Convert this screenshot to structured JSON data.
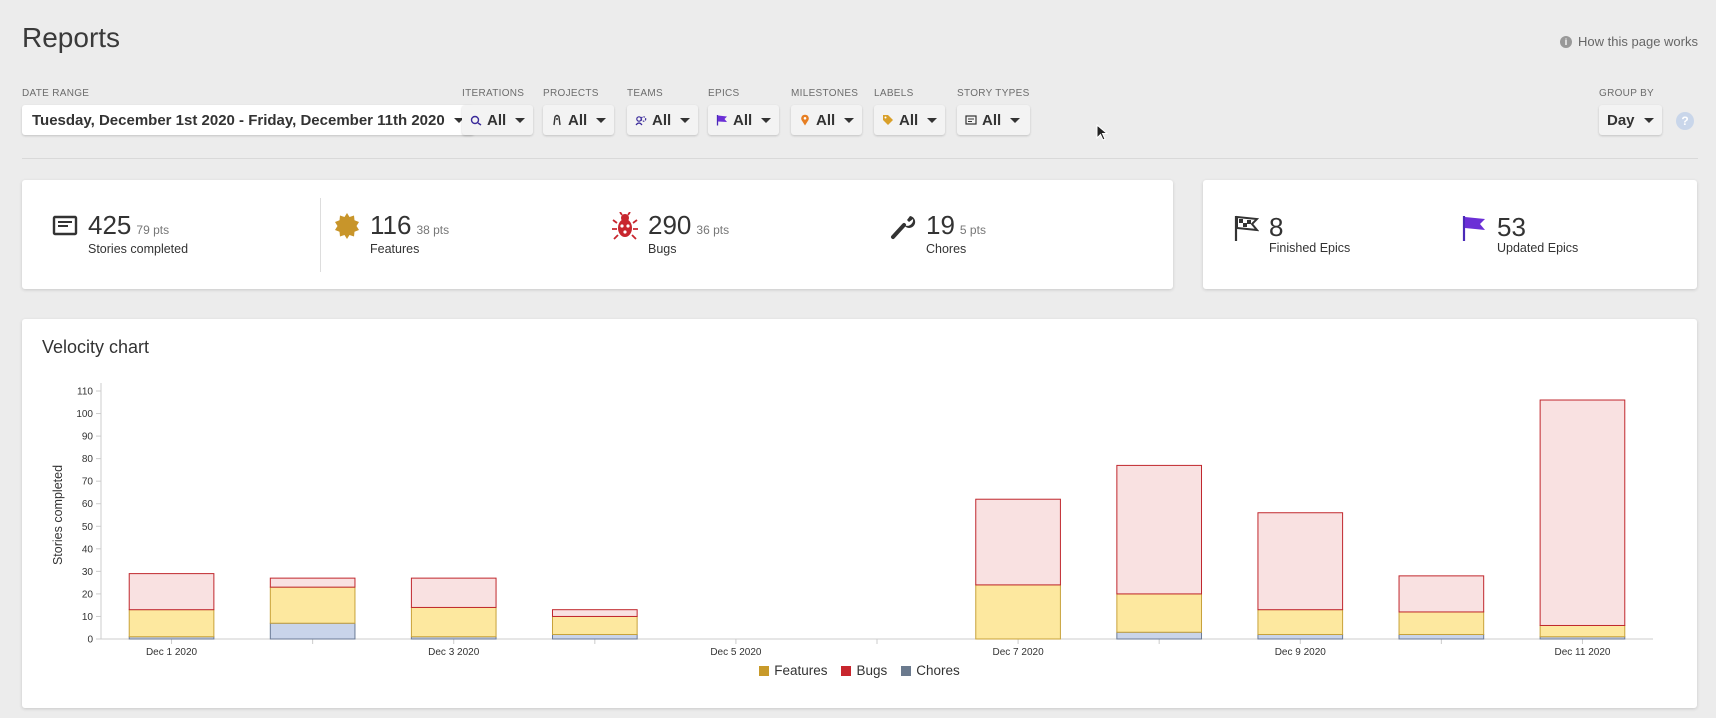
{
  "header": {
    "title": "Reports",
    "help_link": "How this page works"
  },
  "filters": {
    "date_range": {
      "label": "DATE RANGE",
      "value": "Tuesday, December 1st 2020 - Friday, December 11th 2020"
    },
    "iterations": {
      "label": "ITERATIONS",
      "value": "All",
      "icon": "iteration-icon"
    },
    "projects": {
      "label": "PROJECTS",
      "value": "All",
      "icon": "project-icon"
    },
    "teams": {
      "label": "TEAMS",
      "value": "All",
      "icon": "team-icon"
    },
    "epics": {
      "label": "EPICS",
      "value": "All",
      "icon": "epic-flag-icon"
    },
    "milestones": {
      "label": "MILESTONES",
      "value": "All",
      "icon": "milestone-pin-icon"
    },
    "labels": {
      "label": "LABELS",
      "value": "All",
      "icon": "label-tag-icon"
    },
    "story_types": {
      "label": "STORY TYPES",
      "value": "All",
      "icon": "story-card-icon"
    },
    "group_by": {
      "label": "GROUP BY",
      "value": "Day"
    }
  },
  "summary": {
    "stories": {
      "count": "425",
      "pts": "79 pts",
      "label": "Stories completed"
    },
    "features": {
      "count": "116",
      "pts": "38 pts",
      "label": "Features"
    },
    "bugs": {
      "count": "290",
      "pts": "36 pts",
      "label": "Bugs"
    },
    "chores": {
      "count": "19",
      "pts": "5 pts",
      "label": "Chores"
    }
  },
  "epics_summary": {
    "finished": {
      "count": "8",
      "label": "Finished Epics"
    },
    "updated": {
      "count": "53",
      "label": "Updated Epics"
    }
  },
  "colors": {
    "feature_fill": "#fde89f",
    "feature_stroke": "#c8a23a",
    "feature_legend": "#c89a2a",
    "bug_fill": "#f9e1e1",
    "bug_stroke": "#c0272d",
    "bug_legend": "#c8262e",
    "chore_fill": "#c9d4ea",
    "chore_stroke": "#6b7a95",
    "chore_legend": "#6b7a8e",
    "epic_purple": "#6b2fd6",
    "bug_red": "#c8262e",
    "feature_gold": "#c8952a"
  },
  "chart": {
    "title": "Velocity chart"
  },
  "chart_data": {
    "type": "bar",
    "stacked": true,
    "ylabel": "Stories completed",
    "ylim": [
      0,
      110
    ],
    "yticks": [
      0,
      10,
      20,
      30,
      40,
      50,
      60,
      70,
      80,
      90,
      100,
      110
    ],
    "categories": [
      "Dec 1 2020",
      "Dec 2 2020",
      "Dec 3 2020",
      "Dec 4 2020",
      "Dec 5 2020",
      "Dec 6 2020",
      "Dec 7 2020",
      "Dec 8 2020",
      "Dec 9 2020",
      "Dec 10 2020",
      "Dec 11 2020"
    ],
    "xtick_labels": [
      "Dec 1 2020",
      "",
      "Dec 3 2020",
      "",
      "Dec 5 2020",
      "",
      "Dec 7 2020",
      "",
      "Dec 9 2020",
      "",
      "Dec 11 2020"
    ],
    "series": [
      {
        "name": "Chores",
        "values": [
          1,
          7,
          1,
          2,
          0,
          0,
          0,
          3,
          2,
          2,
          1
        ]
      },
      {
        "name": "Features",
        "values": [
          12,
          16,
          13,
          8,
          0,
          0,
          24,
          17,
          11,
          10,
          5
        ]
      },
      {
        "name": "Bugs",
        "values": [
          16,
          4,
          13,
          3,
          0,
          0,
          38,
          57,
          43,
          16,
          100
        ]
      }
    ],
    "legend": [
      "Features",
      "Bugs",
      "Chores"
    ],
    "legend_position": "bottom",
    "grid": false
  }
}
